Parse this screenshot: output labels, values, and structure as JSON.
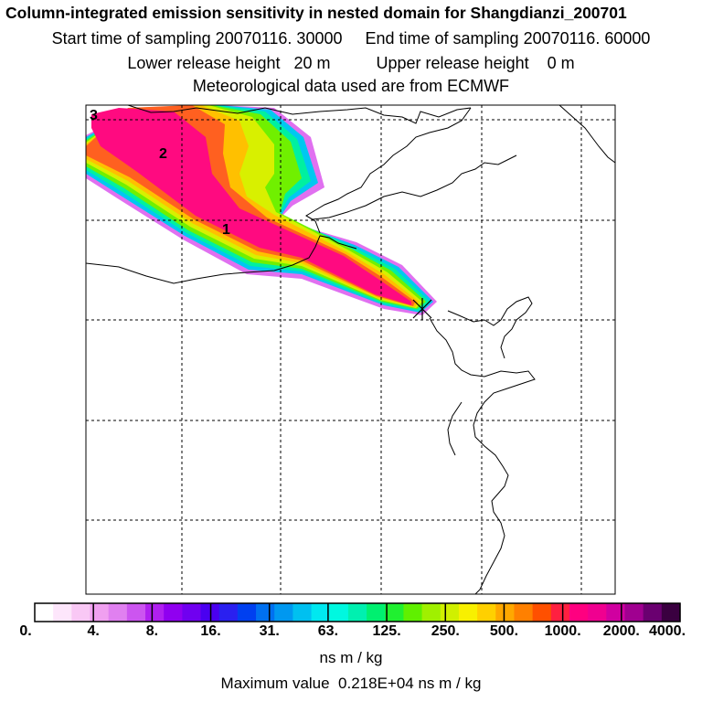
{
  "header": {
    "title": "Column-integrated emission sensitivity in nested domain for Shangdianzi_200701",
    "line2": "Start time of sampling 20070116. 30000     End time of sampling 20070116. 60000",
    "line3": "Lower release height   20 m          Upper release height    0 m",
    "line4": "Meteorological data used are from ECMWF"
  },
  "map": {
    "labels": [
      "3",
      "2",
      "1"
    ],
    "marker": "release-site-cross"
  },
  "colorbar": {
    "ticks": [
      "0.",
      "4.",
      "8.",
      "16.",
      "31.",
      "63.",
      "125.",
      "250.",
      "500.",
      "1000.",
      "2000.",
      "4000."
    ],
    "units": "ns m / kg",
    "colors": [
      "#ffffff",
      "#fde6fb",
      "#f9c8f5",
      "#f0a0f0",
      "#e080f0",
      "#cc55f0",
      "#b020f0",
      "#9000f0",
      "#7000f0",
      "#4a00f0",
      "#2a20f0",
      "#0040f0",
      "#0070f0",
      "#0098f0",
      "#00c0f0",
      "#00e8f0",
      "#00f8e0",
      "#00f0b0",
      "#00f070",
      "#20f030",
      "#60f000",
      "#a0f000",
      "#d0f000",
      "#f8f000",
      "#ffd000",
      "#ffa800",
      "#ff8000",
      "#ff5000",
      "#ff2040",
      "#ff0080",
      "#f00090",
      "#d000a0",
      "#a00090",
      "#6a0070",
      "#3a0040"
    ]
  },
  "footer": {
    "max_value": "Maximum value  0.218E+04 ns m / kg"
  }
}
